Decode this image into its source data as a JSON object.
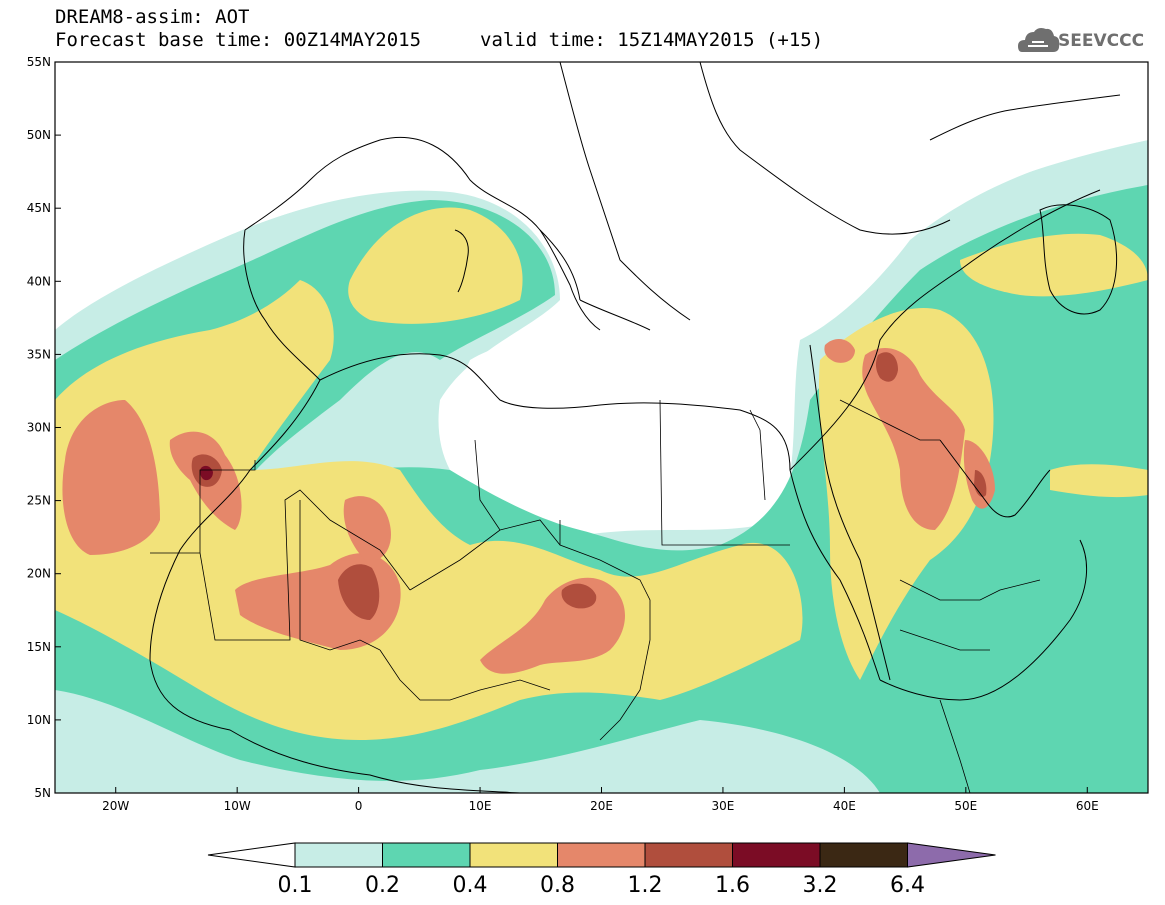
{
  "header": {
    "title": "DREAM8-assim: AOT",
    "base_time": "Forecast base time: 00Z14MAY2015",
    "valid_time": "valid time: 15Z14MAY2015 (+15)",
    "logo_text": "SEEVCCC"
  },
  "axes": {
    "lat_labels": [
      "55N",
      "50N",
      "45N",
      "40N",
      "35N",
      "30N",
      "25N",
      "20N",
      "15N",
      "10N",
      "5N"
    ],
    "lon_labels": [
      "20W",
      "10W",
      "0",
      "10E",
      "20E",
      "30E",
      "40E",
      "50E",
      "60E"
    ]
  },
  "colorbar": {
    "labels": [
      "0.1",
      "0.2",
      "0.4",
      "0.8",
      "1.2",
      "1.6",
      "3.2",
      "6.4"
    ],
    "colors": [
      "#ffffff",
      "#c7ede6",
      "#5ed6b1",
      "#f2e27a",
      "#e5876a",
      "#b04e3d",
      "#7b0c25",
      "#3b2814",
      "#8d6bab"
    ]
  },
  "palette": {
    "c1": "#c7ede6",
    "c2": "#5ed6b1",
    "c3": "#f2e27a",
    "c4": "#e5876a",
    "c5": "#b04e3d",
    "c6": "#7b0c25"
  }
}
